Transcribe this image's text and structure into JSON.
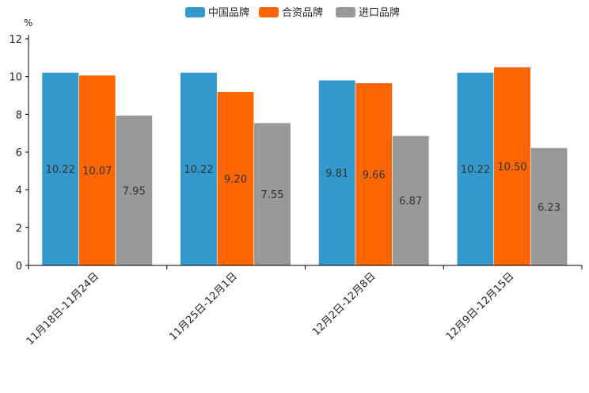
{
  "chart_data": {
    "type": "bar",
    "unit": "%",
    "categories": [
      "11月18日-11月24日",
      "11月25日-12月1日",
      "12月2日-12月8日",
      "12月9日-12月15日"
    ],
    "series": [
      {
        "name": "中国品牌",
        "color": "#3399cc",
        "values": [
          10.22,
          10.22,
          9.81,
          10.22
        ],
        "labels": [
          "10.22",
          "10.22",
          "9.81",
          "10.22"
        ]
      },
      {
        "name": "合资品牌",
        "color": "#ff6600",
        "values": [
          10.07,
          9.2,
          9.66,
          10.5
        ],
        "labels": [
          "10.07",
          "9.20",
          "9.66",
          "10.50"
        ]
      },
      {
        "name": "进口品牌",
        "color": "#999999",
        "values": [
          7.95,
          7.55,
          6.87,
          6.23
        ],
        "labels": [
          "7.95",
          "7.55",
          "6.87",
          "6.23"
        ]
      }
    ],
    "ylim": [
      0,
      12
    ],
    "yticks": [
      0,
      2,
      4,
      6,
      8,
      10,
      12
    ],
    "legend_position": "top-center",
    "grid": false
  }
}
